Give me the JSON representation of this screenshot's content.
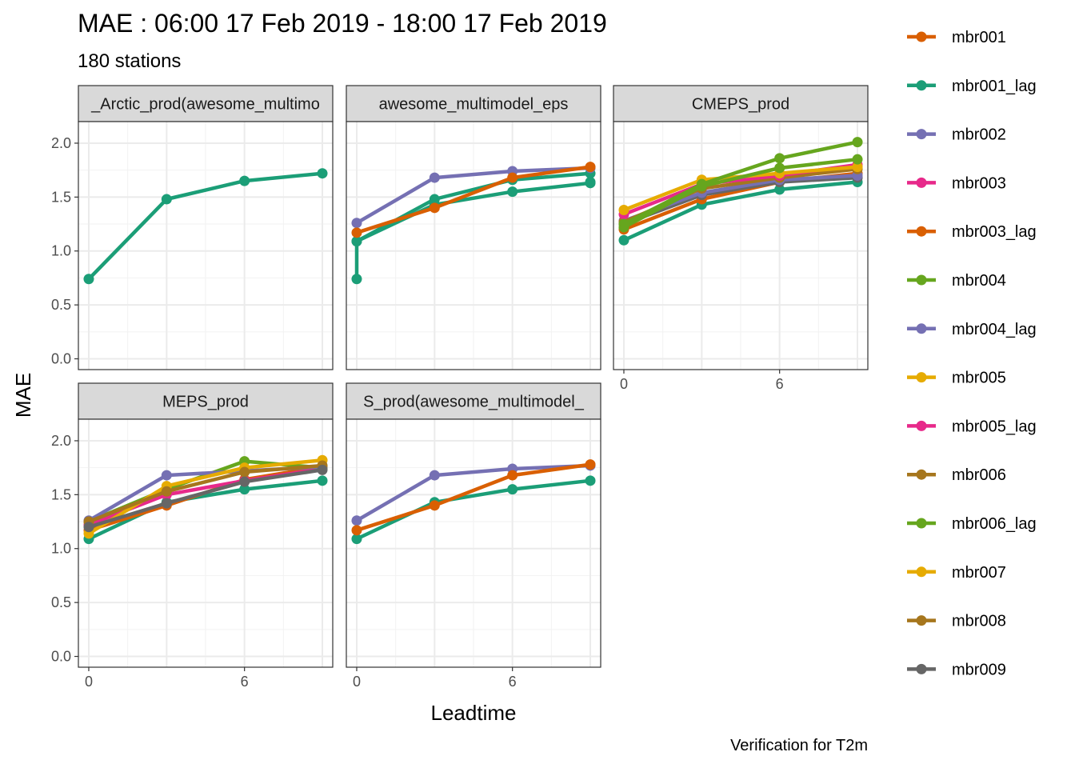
{
  "chart_data": {
    "type": "line",
    "title": "MAE : 06:00 17 Feb 2019 - 18:00 17 Feb 2019",
    "subtitle": "180 stations",
    "xlabel": "Leadtime",
    "ylabel": "MAE",
    "caption": "Verification for T2m",
    "x_ticks": [
      0,
      6
    ],
    "y_ticks": [
      0.0,
      0.5,
      1.0,
      1.5,
      2.0
    ],
    "y_tick_labels": [
      "0.0",
      "0.5",
      "1.0",
      "1.5",
      "2.0"
    ],
    "xlim": [
      -0.4,
      9.4
    ],
    "ylim": [
      -0.1,
      2.2
    ],
    "grid": true,
    "legend_position": "right",
    "legend": [
      {
        "name": "mbr001",
        "color": "#d95f02"
      },
      {
        "name": "mbr001_lag",
        "color": "#1b9e77"
      },
      {
        "name": "mbr002",
        "color": "#7570b3"
      },
      {
        "name": "mbr003",
        "color": "#e7298a"
      },
      {
        "name": "mbr003_lag",
        "color": "#d95f02"
      },
      {
        "name": "mbr004",
        "color": "#66a61e"
      },
      {
        "name": "mbr004_lag",
        "color": "#7570b3"
      },
      {
        "name": "mbr005",
        "color": "#e6ab02"
      },
      {
        "name": "mbr005_lag",
        "color": "#e7298a"
      },
      {
        "name": "mbr006",
        "color": "#a6761d"
      },
      {
        "name": "mbr006_lag",
        "color": "#66a61e"
      },
      {
        "name": "mbr007",
        "color": "#e6ab02"
      },
      {
        "name": "mbr008",
        "color": "#a6761d"
      },
      {
        "name": "mbr009",
        "color": "#666666"
      }
    ],
    "panels": [
      {
        "label": "_Arctic_prod(awesome_multimo",
        "series": [
          {
            "name": "mbr001_lag",
            "color": "#1b9e77",
            "x": [
              0,
              3,
              6,
              9
            ],
            "values": [
              0.74,
              1.48,
              1.65,
              1.72
            ]
          }
        ]
      },
      {
        "label": "awesome_multimodel_eps",
        "series": [
          {
            "name": "mbr001_lag",
            "color": "#1b9e77",
            "x": [
              0,
              0,
              3,
              6,
              9,
              9
            ],
            "values": [
              0.74,
              1.09,
              1.48,
              1.66,
              1.72,
              1.64
            ]
          },
          {
            "name": "mbr001_lag",
            "color": "#1b9e77",
            "x": [
              0,
              3,
              6,
              9
            ],
            "values": [
              1.09,
              1.43,
              1.55,
              1.63
            ]
          },
          {
            "name": "mbr002",
            "color": "#7570b3",
            "x": [
              0,
              3,
              6,
              9
            ],
            "values": [
              1.26,
              1.68,
              1.74,
              1.77
            ]
          },
          {
            "name": "mbr001",
            "color": "#d95f02",
            "x": [
              0,
              3,
              6,
              9
            ],
            "values": [
              1.17,
              1.4,
              1.68,
              1.78
            ]
          }
        ]
      },
      {
        "label": "CMEPS_prod",
        "series": [
          {
            "name": "mbr001_lag",
            "color": "#1b9e77",
            "x": [
              0,
              3,
              6,
              9
            ],
            "values": [
              1.1,
              1.43,
              1.57,
              1.64
            ]
          },
          {
            "name": "mbr001",
            "color": "#d95f02",
            "x": [
              0,
              3,
              6,
              9
            ],
            "values": [
              1.2,
              1.48,
              1.64,
              1.72
            ]
          },
          {
            "name": "mbr009",
            "color": "#666666",
            "x": [
              0,
              3,
              6,
              9
            ],
            "values": [
              1.25,
              1.52,
              1.64,
              1.68
            ]
          },
          {
            "name": "mbr002",
            "color": "#7570b3",
            "x": [
              0,
              3,
              6,
              9
            ],
            "values": [
              1.28,
              1.54,
              1.66,
              1.7
            ]
          },
          {
            "name": "mbr008",
            "color": "#a6761d",
            "x": [
              0,
              3,
              6,
              9
            ],
            "values": [
              1.27,
              1.58,
              1.68,
              1.76
            ]
          },
          {
            "name": "mbr003",
            "color": "#e7298a",
            "x": [
              0,
              3,
              6,
              9
            ],
            "values": [
              1.34,
              1.62,
              1.7,
              1.8
            ]
          },
          {
            "name": "mbr005",
            "color": "#e6ab02",
            "x": [
              0,
              3,
              6,
              9
            ],
            "values": [
              1.38,
              1.66,
              1.72,
              1.78
            ]
          },
          {
            "name": "mbr006_lag",
            "color": "#66a61e",
            "x": [
              0,
              3,
              6,
              9
            ],
            "values": [
              1.22,
              1.6,
              1.77,
              1.85
            ]
          },
          {
            "name": "mbr004",
            "color": "#66a61e",
            "x": [
              0,
              3,
              6,
              9
            ],
            "values": [
              1.25,
              1.62,
              1.86,
              2.01
            ]
          }
        ]
      },
      {
        "label": "MEPS_prod",
        "series": [
          {
            "name": "mbr001_lag",
            "color": "#1b9e77",
            "x": [
              0,
              3,
              6,
              9
            ],
            "values": [
              1.09,
              1.43,
              1.55,
              1.63
            ]
          },
          {
            "name": "mbr001",
            "color": "#d95f02",
            "x": [
              0,
              3,
              6,
              9
            ],
            "values": [
              1.17,
              1.4,
              1.64,
              1.76
            ]
          },
          {
            "name": "mbr003",
            "color": "#e7298a",
            "x": [
              0,
              3,
              6,
              9
            ],
            "values": [
              1.22,
              1.5,
              1.63,
              1.74
            ]
          },
          {
            "name": "mbr006",
            "color": "#66a61e",
            "x": [
              0,
              3,
              6,
              9
            ],
            "values": [
              1.25,
              1.55,
              1.81,
              1.75
            ]
          },
          {
            "name": "mbr002",
            "color": "#7570b3",
            "x": [
              0,
              3,
              6,
              9
            ],
            "values": [
              1.26,
              1.68,
              1.72,
              1.76
            ]
          },
          {
            "name": "mbr005",
            "color": "#e6ab02",
            "x": [
              0,
              3,
              6,
              9
            ],
            "values": [
              1.14,
              1.58,
              1.75,
              1.82
            ]
          },
          {
            "name": "mbr008",
            "color": "#a6761d",
            "x": [
              0,
              3,
              6,
              9
            ],
            "values": [
              1.25,
              1.53,
              1.71,
              1.77
            ]
          },
          {
            "name": "mbr009",
            "color": "#666666",
            "x": [
              0,
              3,
              6,
              9
            ],
            "values": [
              1.2,
              1.42,
              1.62,
              1.73
            ]
          }
        ]
      },
      {
        "label": "S_prod(awesome_multimodel_",
        "series": [
          {
            "name": "mbr001_lag",
            "color": "#1b9e77",
            "x": [
              0,
              3,
              6,
              9
            ],
            "values": [
              1.09,
              1.43,
              1.55,
              1.63
            ]
          },
          {
            "name": "mbr002",
            "color": "#7570b3",
            "x": [
              0,
              3,
              6,
              9
            ],
            "values": [
              1.26,
              1.68,
              1.74,
              1.77
            ]
          },
          {
            "name": "mbr001",
            "color": "#d95f02",
            "x": [
              0,
              3,
              6,
              9
            ],
            "values": [
              1.17,
              1.4,
              1.68,
              1.78
            ]
          }
        ]
      }
    ]
  }
}
